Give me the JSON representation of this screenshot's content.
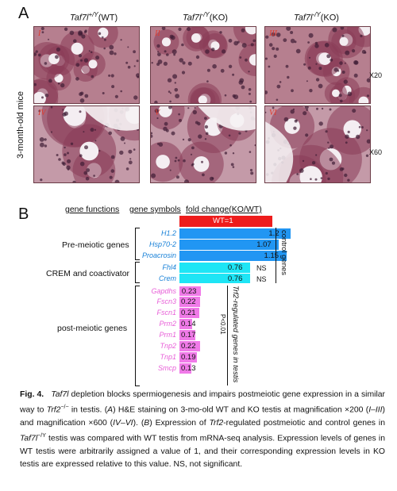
{
  "panel_a": {
    "letter": "A",
    "row_label": "3-month-old mice",
    "columns": [
      {
        "gene": "Taf7l",
        "sup": "+/Y",
        "geno": "(WT)"
      },
      {
        "gene": "Taf7l",
        "sup": "-/Y",
        "geno": "(KO)"
      },
      {
        "gene": "Taf7l",
        "sup": "-/Y",
        "geno": "(KO)"
      }
    ],
    "tiles": [
      "I",
      "II",
      "III",
      "IV",
      "V",
      "VI"
    ],
    "mag_top": "X20",
    "mag_bottom": "X60"
  },
  "panel_b": {
    "letter": "B",
    "headers": {
      "functions": "gene functions",
      "symbols": "gene symbols",
      "fold": "fold change(KO/WT)"
    },
    "wt_label": "WT=1",
    "groups": [
      "Pre-meiotic genes",
      "CREM and coactivator",
      "post-meiotic genes"
    ],
    "ns_label": "NS",
    "control_label": "control genes",
    "trf2_label": "Trf2-regulated genes in testis",
    "p_label": "P<0.01",
    "colors": {
      "wt": "#ee1c1c",
      "blue": "#2196f3",
      "cyan": "#1ee5f5",
      "magenta": "#f07ae8",
      "gene_blue": "#1a82d8",
      "gene_pink": "#e860d8"
    }
  },
  "chart_data": {
    "type": "bar",
    "orientation": "horizontal",
    "title": "fold change(KO/WT)",
    "categories": [
      "Fhl4",
      "Crem",
      "H1.2",
      "Hsp70-2",
      "Proacrosin",
      "Gapdhs",
      "Fscn3",
      "Fscn1",
      "Prm2",
      "Prm1",
      "Tnp2",
      "Tnp1",
      "Smcp"
    ],
    "series": [
      {
        "values": [
          0.76,
          0.76,
          1.2,
          1.07,
          1.15,
          0.23,
          0.22,
          0.21,
          0.14,
          0.17,
          0.22,
          0.19,
          0.13
        ]
      }
    ],
    "bar_labels": [
      "0.76",
      "0.76",
      "1.2",
      "1.07",
      "1.15",
      "0.23",
      "0.22",
      "0.21",
      "0.14",
      "0.17",
      "0.22",
      "0.19",
      "0.13"
    ],
    "reference": {
      "label": "WT=1",
      "value": 1
    }
  },
  "caption": {
    "fig": "Fig. 4.",
    "title_italic": "Taf7l",
    "title_rest": " depletion blocks spermiogenesis and impairs postmeiotic gene expression in a similar way to ",
    "trf2": "Trf2",
    "trf2_sup": "−/−",
    "title_end": " in testis. (",
    "a": "A",
    "body1": ") H&E staining on 3-mo-old WT and KO testis at magnification ×200 (",
    "r1": "I–III",
    "body2": ") and magnification ×600 (",
    "r2": "IV–VI",
    "body3": "). (",
    "b": "B",
    "body4": ") Expression of ",
    "trf2b": "Trf2",
    "body5": "-regulated postmeiotic and control genes in ",
    "taf": "Taf7l",
    "taf_sup": "−/Y",
    "body6": " testis was compared with WT testis from mRNA-seq analysis. Expression levels of genes in WT testis were arbitrarily assigned a value of 1, and their corresponding expression levels in KO testis are expressed relative to this value. NS, not significant."
  }
}
